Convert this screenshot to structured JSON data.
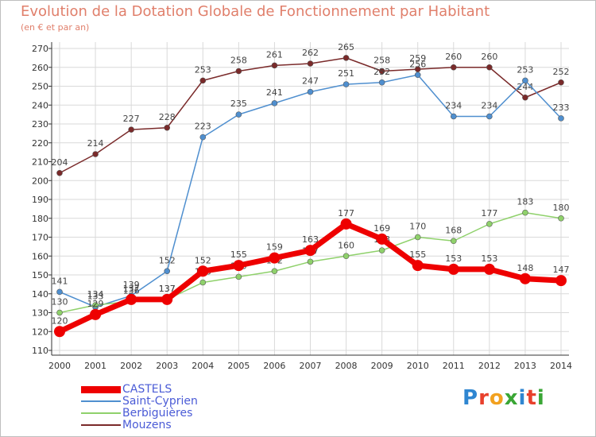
{
  "header": {
    "title": "Evolution de la Dotation Globale de Fonctionnement par Habitant",
    "subtitle": "(en € et par an)"
  },
  "logo": {
    "text": "Proxiti",
    "colors": [
      "#2f86d1",
      "#e8402c",
      "#f2a11f",
      "#3aa635",
      "#2f86d1",
      "#e8402c",
      "#3aa635"
    ]
  },
  "chart_data": {
    "type": "line",
    "title": "Evolution de la Dotation Globale de Fonctionnement par Habitant",
    "subtitle": "(en € et par an)",
    "xlabel": "",
    "ylabel": "",
    "categories": [
      "2000",
      "2001",
      "2002",
      "2003",
      "2004",
      "2005",
      "2006",
      "2007",
      "2008",
      "2009",
      "2010",
      "2011",
      "2012",
      "2013",
      "2014"
    ],
    "ylim": [
      110,
      270
    ],
    "yticks": [
      110,
      120,
      130,
      140,
      150,
      160,
      170,
      180,
      190,
      200,
      210,
      220,
      230,
      240,
      250,
      260,
      270
    ],
    "grid": true,
    "legend_position": "bottom-left",
    "series": [
      {
        "name": "Mouzens",
        "color": "#7a2a2a",
        "values": [
          204,
          214,
          227,
          228,
          253,
          258,
          261,
          262,
          265,
          258,
          259,
          260,
          260,
          244,
          252
        ]
      },
      {
        "name": "Saint-Cyprien",
        "color": "#4f8fcf",
        "values": [
          141,
          133,
          139,
          152,
          223,
          235,
          241,
          247,
          251,
          252,
          256,
          234,
          234,
          253,
          233
        ]
      },
      {
        "name": "Berbiguières",
        "color": "#8fd16b",
        "values": [
          130,
          134,
          136,
          137,
          146,
          149,
          152,
          157,
          160,
          163,
          170,
          168,
          177,
          183,
          180
        ]
      },
      {
        "name": "CASTELS",
        "color": "#ee0000",
        "values": [
          120,
          129,
          137,
          137,
          152,
          155,
          159,
          163,
          177,
          169,
          155,
          153,
          153,
          148,
          147
        ]
      }
    ],
    "legend": [
      "CASTELS",
      "Saint-Cyprien",
      "Berbiguières",
      "Mouzens"
    ]
  }
}
